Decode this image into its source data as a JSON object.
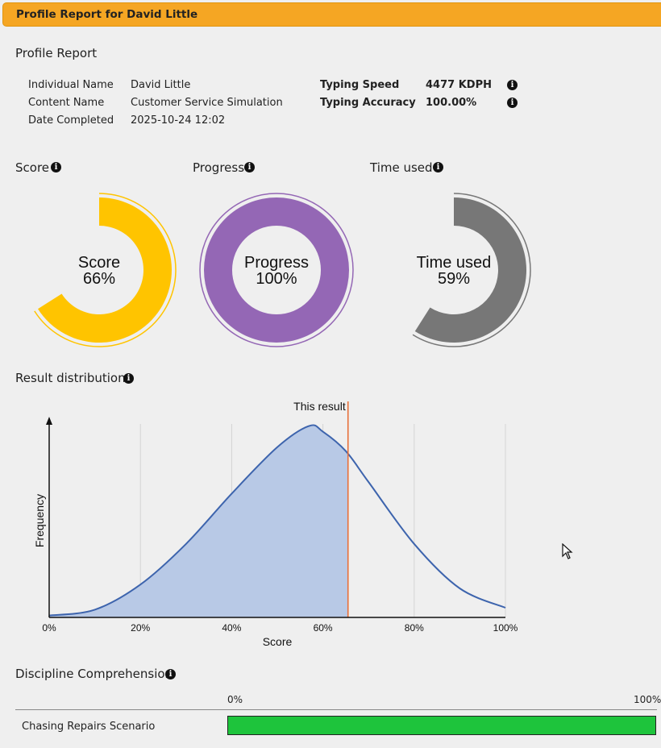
{
  "window": {
    "title": "Profile Report for David Little"
  },
  "profile": {
    "heading": "Profile Report",
    "fields": [
      {
        "label": "Individual Name",
        "value": "David Little"
      },
      {
        "label": "Content Name",
        "value": "Customer Service Simulation"
      },
      {
        "label": "Date Completed",
        "value": "2025-10-24 12:02"
      }
    ],
    "metrics": [
      {
        "label": "Typing Speed",
        "value": "4477 KDPH"
      },
      {
        "label": "Typing Accuracy",
        "value": "100.00%"
      }
    ]
  },
  "gauges": [
    {
      "heading": "Score",
      "center_title": "Score",
      "center_value": "66%",
      "fraction": 0.66,
      "color": "#ffc400"
    },
    {
      "heading": "Progress",
      "center_title": "Progress",
      "center_value": "100%",
      "fraction": 1.0,
      "color": "#9467b5"
    },
    {
      "heading": "Time used",
      "center_title": "Time used",
      "center_value": "59%",
      "fraction": 0.59,
      "color": "#777777"
    }
  ],
  "distribution": {
    "heading": "Result distribution",
    "marker_label": "This result"
  },
  "chart_data": {
    "type": "area",
    "xlabel": "Score",
    "ylabel": "Frequency",
    "xlim": [
      0,
      100
    ],
    "xticks": [
      "0%",
      "20%",
      "40%",
      "60%",
      "80%",
      "100%"
    ],
    "x": [
      0,
      10,
      20,
      30,
      40,
      50,
      57,
      60,
      65,
      70,
      80,
      90,
      100
    ],
    "y": [
      0.01,
      0.04,
      0.17,
      0.38,
      0.64,
      0.88,
      0.99,
      0.96,
      0.86,
      0.7,
      0.38,
      0.15,
      0.05
    ],
    "marker_x": 65.5,
    "grid": true,
    "line_color": "#3d64ad",
    "fill_color": "#b8c9e6",
    "marker_color": "#e8703a"
  },
  "discipline": {
    "heading": "Discipline Comprehension",
    "scale_min": "0%",
    "scale_max": "100%",
    "rows": [
      {
        "name": "Chasing Repairs Scenario",
        "fraction": 1.0,
        "color": "#1ec43c"
      }
    ]
  }
}
